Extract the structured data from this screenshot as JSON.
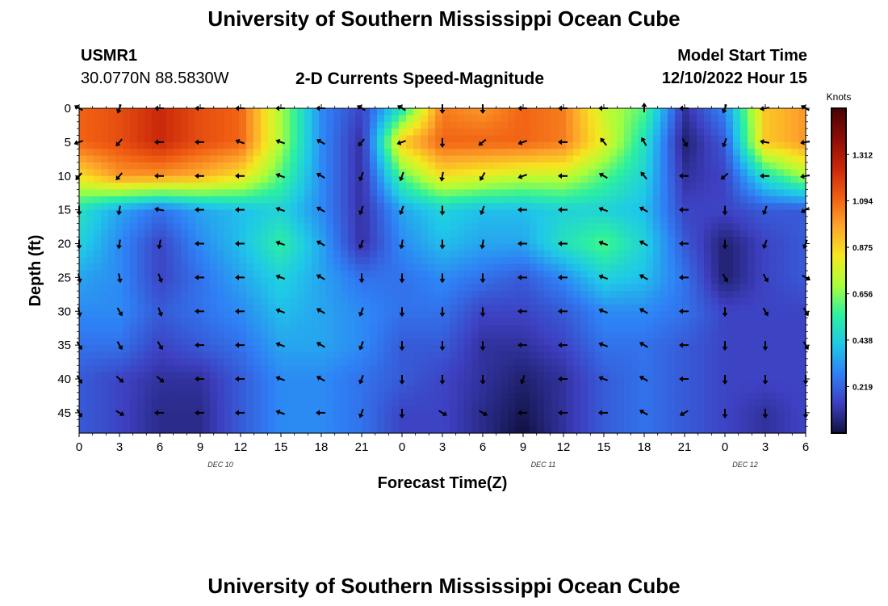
{
  "page": {
    "title_top": "University of Southern Mississippi Ocean Cube",
    "title_bottom": "University of Southern Mississippi Ocean Cube"
  },
  "header": {
    "station_id": "USMR1",
    "coords": "30.0770N  88.5830W",
    "plot_title": "2-D Currents Speed-Magnitude",
    "model_start_label": "Model Start Time",
    "model_start_value": "12/10/2022 Hour 15"
  },
  "chart_data": {
    "type": "heatmap",
    "title": "2-D Currents Speed-Magnitude",
    "xlabel": "Forecast Time(Z)",
    "ylabel": "Depth (ft)",
    "x_ticks": [
      "0",
      "3",
      "6",
      "9",
      "12",
      "15",
      "18",
      "21",
      "0",
      "3",
      "6",
      "9",
      "12",
      "15",
      "18",
      "21",
      "0",
      "3",
      "6"
    ],
    "date_labels": [
      {
        "label": "DEC 10",
        "x_hour": 10.5
      },
      {
        "label": "DEC 11",
        "x_hour": 34.5
      },
      {
        "label": "DEC 12",
        "x_hour": 49.5
      }
    ],
    "y_ticks": [
      0,
      5,
      10,
      15,
      20,
      25,
      30,
      35,
      40,
      45
    ],
    "xlim": [
      0,
      54
    ],
    "ylim": [
      0,
      48
    ],
    "grid": false,
    "colorbar": {
      "label": "Knots",
      "ticks": [
        "0.219",
        "0.438",
        "0.656",
        "0.875",
        "1.094",
        "1.312"
      ],
      "range": [
        0,
        1.53
      ],
      "colors": [
        "#101040",
        "#3d3fc0",
        "#2f7ff5",
        "#1fc8e8",
        "#2cf0a0",
        "#a8ff3a",
        "#f5e81f",
        "#fea52b",
        "#f05d12",
        "#c9260a",
        "#8a0d05",
        "#4a0303"
      ]
    },
    "speed_grid": {
      "x_hours": [
        0,
        3,
        6,
        9,
        12,
        15,
        18,
        21,
        24,
        27,
        30,
        33,
        36,
        39,
        42,
        45,
        48,
        51,
        54
      ],
      "depths": [
        0,
        5,
        10,
        15,
        20,
        25,
        30,
        35,
        40,
        45,
        48
      ],
      "values": [
        [
          1.1,
          1.15,
          1.25,
          1.15,
          1.1,
          0.7,
          0.3,
          0.15,
          0.5,
          1.05,
          1.0,
          1.1,
          1.05,
          0.75,
          0.6,
          0.1,
          0.3,
          0.9,
          1.0
        ],
        [
          1.1,
          1.15,
          1.25,
          1.15,
          1.1,
          0.7,
          0.3,
          0.1,
          0.9,
          1.1,
          1.1,
          1.1,
          1.05,
          0.8,
          0.5,
          0.05,
          0.2,
          0.9,
          1.0
        ],
        [
          0.85,
          1.0,
          1.0,
          0.95,
          0.85,
          0.6,
          0.3,
          0.1,
          0.6,
          0.85,
          0.8,
          0.75,
          0.75,
          0.6,
          0.45,
          0.1,
          0.15,
          0.5,
          0.7
        ],
        [
          0.5,
          0.35,
          0.25,
          0.35,
          0.4,
          0.45,
          0.3,
          0.1,
          0.35,
          0.45,
          0.4,
          0.4,
          0.45,
          0.45,
          0.4,
          0.15,
          0.15,
          0.2,
          0.2
        ],
        [
          0.45,
          0.3,
          0.15,
          0.3,
          0.4,
          0.55,
          0.35,
          0.1,
          0.3,
          0.4,
          0.35,
          0.35,
          0.5,
          0.6,
          0.45,
          0.2,
          0.05,
          0.15,
          0.2
        ],
        [
          0.35,
          0.3,
          0.15,
          0.25,
          0.35,
          0.45,
          0.35,
          0.25,
          0.25,
          0.3,
          0.25,
          0.2,
          0.3,
          0.45,
          0.4,
          0.25,
          0.05,
          0.15,
          0.2
        ],
        [
          0.3,
          0.3,
          0.2,
          0.25,
          0.3,
          0.4,
          0.35,
          0.3,
          0.25,
          0.25,
          0.15,
          0.15,
          0.2,
          0.3,
          0.3,
          0.25,
          0.15,
          0.15,
          0.15
        ],
        [
          0.25,
          0.25,
          0.15,
          0.2,
          0.25,
          0.35,
          0.35,
          0.3,
          0.2,
          0.2,
          0.1,
          0.1,
          0.15,
          0.25,
          0.25,
          0.2,
          0.15,
          0.15,
          0.15
        ],
        [
          0.2,
          0.15,
          0.1,
          0.1,
          0.2,
          0.3,
          0.3,
          0.25,
          0.2,
          0.15,
          0.1,
          0.05,
          0.1,
          0.2,
          0.25,
          0.2,
          0.15,
          0.15,
          0.15
        ],
        [
          0.2,
          0.15,
          0.08,
          0.08,
          0.2,
          0.3,
          0.3,
          0.25,
          0.15,
          0.15,
          0.08,
          0.02,
          0.1,
          0.2,
          0.25,
          0.2,
          0.15,
          0.1,
          0.15
        ],
        [
          0.2,
          0.15,
          0.08,
          0.08,
          0.2,
          0.3,
          0.3,
          0.25,
          0.15,
          0.15,
          0.08,
          0.0,
          0.1,
          0.2,
          0.25,
          0.2,
          0.15,
          0.1,
          0.15
        ]
      ]
    },
    "vectors": {
      "x_hours": [
        0,
        3,
        6,
        9,
        12,
        15,
        18,
        21,
        24,
        27,
        30,
        33,
        36,
        39,
        42,
        45,
        48,
        51,
        54
      ],
      "depths": [
        0,
        5,
        10,
        15,
        20,
        25,
        30,
        35,
        40,
        45
      ],
      "direction_deg": [
        [
          300,
          200,
          270,
          270,
          270,
          270,
          270,
          300,
          300,
          180,
          180,
          270,
          270,
          270,
          0,
          270,
          200,
          260,
          300
        ],
        [
          250,
          220,
          270,
          270,
          290,
          290,
          300,
          220,
          250,
          180,
          230,
          250,
          270,
          320,
          330,
          150,
          200,
          280,
          260
        ],
        [
          220,
          220,
          270,
          270,
          270,
          290,
          300,
          200,
          200,
          190,
          210,
          250,
          270,
          300,
          320,
          270,
          230,
          270,
          260
        ],
        [
          180,
          190,
          280,
          270,
          270,
          290,
          300,
          200,
          200,
          180,
          200,
          270,
          270,
          290,
          300,
          270,
          180,
          200,
          240
        ],
        [
          180,
          190,
          190,
          270,
          270,
          290,
          300,
          200,
          190,
          180,
          190,
          270,
          270,
          290,
          300,
          270,
          180,
          200,
          200
        ],
        [
          170,
          170,
          160,
          270,
          270,
          290,
          300,
          180,
          180,
          180,
          180,
          270,
          270,
          290,
          300,
          270,
          150,
          150,
          120
        ],
        [
          170,
          150,
          160,
          270,
          270,
          290,
          300,
          200,
          180,
          180,
          180,
          270,
          270,
          290,
          300,
          270,
          180,
          150,
          150
        ],
        [
          150,
          150,
          150,
          270,
          270,
          290,
          300,
          200,
          180,
          180,
          180,
          270,
          270,
          290,
          300,
          270,
          180,
          180,
          150
        ],
        [
          150,
          130,
          130,
          270,
          270,
          290,
          300,
          200,
          180,
          180,
          180,
          200,
          270,
          290,
          300,
          270,
          180,
          180,
          180
        ],
        [
          150,
          120,
          270,
          270,
          270,
          290,
          270,
          200,
          180,
          120,
          120,
          270,
          270,
          270,
          300,
          240,
          180,
          180,
          180
        ]
      ]
    }
  }
}
